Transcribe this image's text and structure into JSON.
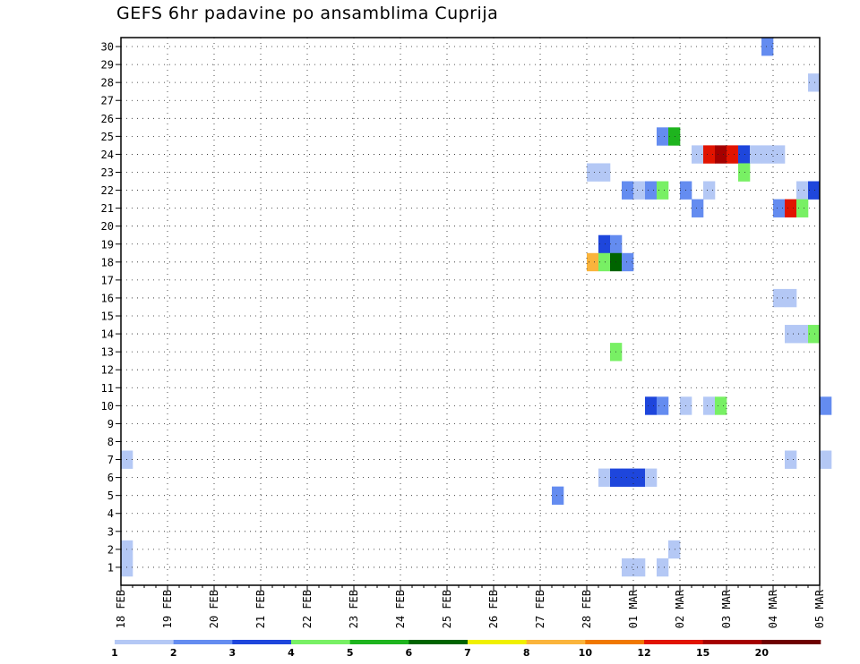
{
  "chart_data": {
    "type": "heatmap",
    "title": "GEFS 6hr padavine po ansamblima Cuprija",
    "xlabel": "",
    "ylabel": "",
    "x_ticks": [
      "18 FEB",
      "19 FEB",
      "20 FEB",
      "21 FEB",
      "22 FEB",
      "23 FEB",
      "24 FEB",
      "25 FEB",
      "26 FEB",
      "27 FEB",
      "28 FEB",
      "01 MAR",
      "02 MAR",
      "03 MAR",
      "04 MAR",
      "05 MAR"
    ],
    "y_ticks": [
      1,
      2,
      3,
      4,
      5,
      6,
      7,
      8,
      9,
      10,
      11,
      12,
      13,
      14,
      15,
      16,
      17,
      18,
      19,
      20,
      21,
      22,
      23,
      24,
      25,
      26,
      27,
      28,
      29,
      30
    ],
    "x_step_hours": 6,
    "grid": true,
    "colorbar": {
      "labels": [
        "1",
        "2",
        "3",
        "4",
        "5",
        "6",
        "7",
        "8",
        "10",
        "12",
        "15",
        "20"
      ],
      "colors": [
        "#b4c8f5",
        "#648cf0",
        "#1e46dc",
        "#78f064",
        "#1eb41e",
        "#006400",
        "#f0f000",
        "#fab43c",
        "#f07800",
        "#e11400",
        "#a50000",
        "#6e0000"
      ]
    },
    "cells": [
      {
        "member": 30,
        "step": 55,
        "cls": 1
      },
      {
        "member": 28,
        "step": 59,
        "cls": 0
      },
      {
        "member": 25,
        "step": 46,
        "cls": 1
      },
      {
        "member": 25,
        "step": 47,
        "cls": 4
      },
      {
        "member": 24,
        "step": 49,
        "cls": 0
      },
      {
        "member": 24,
        "step": 50,
        "cls": 9
      },
      {
        "member": 24,
        "step": 51,
        "cls": 10
      },
      {
        "member": 24,
        "step": 52,
        "cls": 9
      },
      {
        "member": 24,
        "step": 53,
        "cls": 2
      },
      {
        "member": 24,
        "step": 54,
        "cls": 0
      },
      {
        "member": 24,
        "step": 55,
        "cls": 0
      },
      {
        "member": 24,
        "step": 56,
        "cls": 0
      },
      {
        "member": 23,
        "step": 40,
        "cls": 0
      },
      {
        "member": 23,
        "step": 41,
        "cls": 0
      },
      {
        "member": 23,
        "step": 53,
        "cls": 3
      },
      {
        "member": 22,
        "step": 43,
        "cls": 1
      },
      {
        "member": 22,
        "step": 44,
        "cls": 0
      },
      {
        "member": 22,
        "step": 45,
        "cls": 1
      },
      {
        "member": 22,
        "step": 46,
        "cls": 3
      },
      {
        "member": 22,
        "step": 48,
        "cls": 1
      },
      {
        "member": 22,
        "step": 50,
        "cls": 0
      },
      {
        "member": 22,
        "step": 58,
        "cls": 0
      },
      {
        "member": 22,
        "step": 59,
        "cls": 2
      },
      {
        "member": 21,
        "step": 49,
        "cls": 1
      },
      {
        "member": 21,
        "step": 56,
        "cls": 1
      },
      {
        "member": 21,
        "step": 57,
        "cls": 9
      },
      {
        "member": 21,
        "step": 58,
        "cls": 3
      },
      {
        "member": 19,
        "step": 41,
        "cls": 2
      },
      {
        "member": 19,
        "step": 42,
        "cls": 1
      },
      {
        "member": 18,
        "step": 40,
        "cls": 7
      },
      {
        "member": 18,
        "step": 41,
        "cls": 3
      },
      {
        "member": 18,
        "step": 42,
        "cls": 5
      },
      {
        "member": 18,
        "step": 43,
        "cls": 1
      },
      {
        "member": 16,
        "step": 56,
        "cls": 0
      },
      {
        "member": 16,
        "step": 57,
        "cls": 0
      },
      {
        "member": 14,
        "step": 57,
        "cls": 0
      },
      {
        "member": 14,
        "step": 58,
        "cls": 0
      },
      {
        "member": 14,
        "step": 59,
        "cls": 3
      },
      {
        "member": 13,
        "step": 42,
        "cls": 3
      },
      {
        "member": 10,
        "step": 45,
        "cls": 2
      },
      {
        "member": 10,
        "step": 46,
        "cls": 1
      },
      {
        "member": 10,
        "step": 48,
        "cls": 0
      },
      {
        "member": 10,
        "step": 50,
        "cls": 0
      },
      {
        "member": 10,
        "step": 51,
        "cls": 3
      },
      {
        "member": 10,
        "step": 60,
        "cls": 1
      },
      {
        "member": 7,
        "step": 0,
        "cls": 0
      },
      {
        "member": 7,
        "step": 57,
        "cls": 0
      },
      {
        "member": 7,
        "step": 60,
        "cls": 0
      },
      {
        "member": 6,
        "step": 41,
        "cls": 0
      },
      {
        "member": 6,
        "step": 42,
        "cls": 2
      },
      {
        "member": 6,
        "step": 43,
        "cls": 2
      },
      {
        "member": 6,
        "step": 44,
        "cls": 2
      },
      {
        "member": 6,
        "step": 45,
        "cls": 0
      },
      {
        "member": 5,
        "step": 37,
        "cls": 1
      },
      {
        "member": 2,
        "step": 0,
        "cls": 0
      },
      {
        "member": 2,
        "step": 47,
        "cls": 0
      },
      {
        "member": 1,
        "step": 0,
        "cls": 0
      },
      {
        "member": 1,
        "step": 43,
        "cls": 0
      },
      {
        "member": 1,
        "step": 44,
        "cls": 0
      },
      {
        "member": 1,
        "step": 46,
        "cls": 0
      }
    ]
  }
}
